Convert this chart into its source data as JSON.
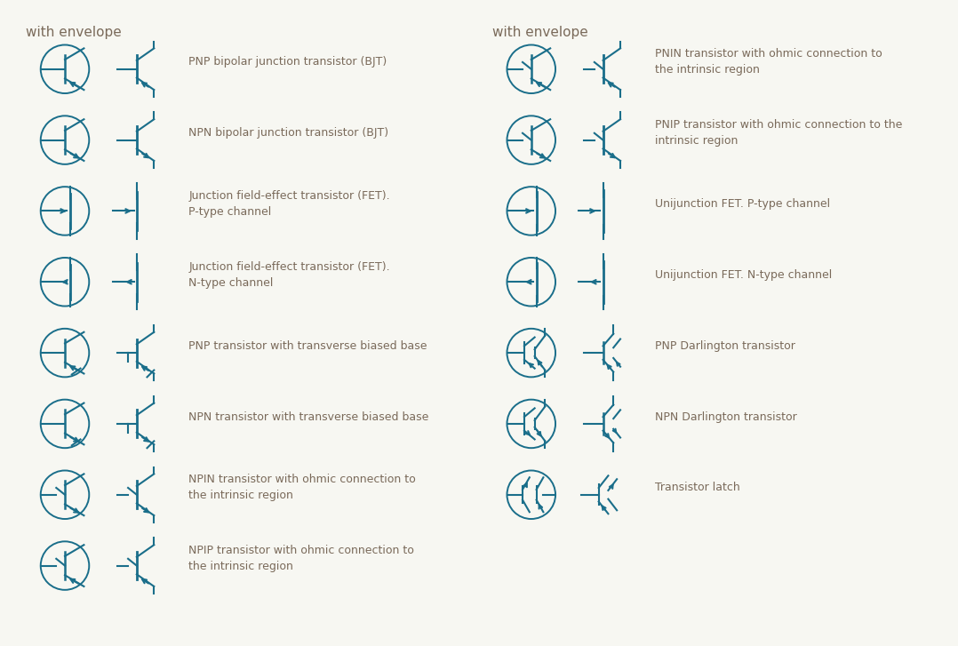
{
  "bg_color": "#f7f7f2",
  "symbol_color": "#1a6e8a",
  "text_color": "#7a6a5a",
  "title_color": "#7a6a5a",
  "title_fontsize": 11,
  "label_fontsize": 9.0,
  "left_header": "with envelope",
  "right_header": "with envelope",
  "left_rows": [
    "PNP bipolar junction transistor (BJT)",
    "NPN bipolar junction transistor (BJT)",
    "Junction field-effect transistor (FET).\nP-type channel",
    "Junction field-effect transistor (FET).\nN-type channel",
    "PNP transistor with transverse biased base",
    "NPN transistor with transverse biased base",
    "NPIN transistor with ohmic connection to\nthe intrinsic region",
    "NPIP transistor with ohmic connection to\nthe intrinsic region"
  ],
  "right_rows": [
    "PNIN transistor with ohmic connection to\nthe intrinsic region",
    "PNIP transistor with ohmic connection to the\nintrinsic region",
    "Unijunction FET. P-type channel",
    "Unijunction FET. N-type channel",
    "PNP Darlington transistor",
    "NPN Darlington transistor",
    "Transistor latch"
  ]
}
